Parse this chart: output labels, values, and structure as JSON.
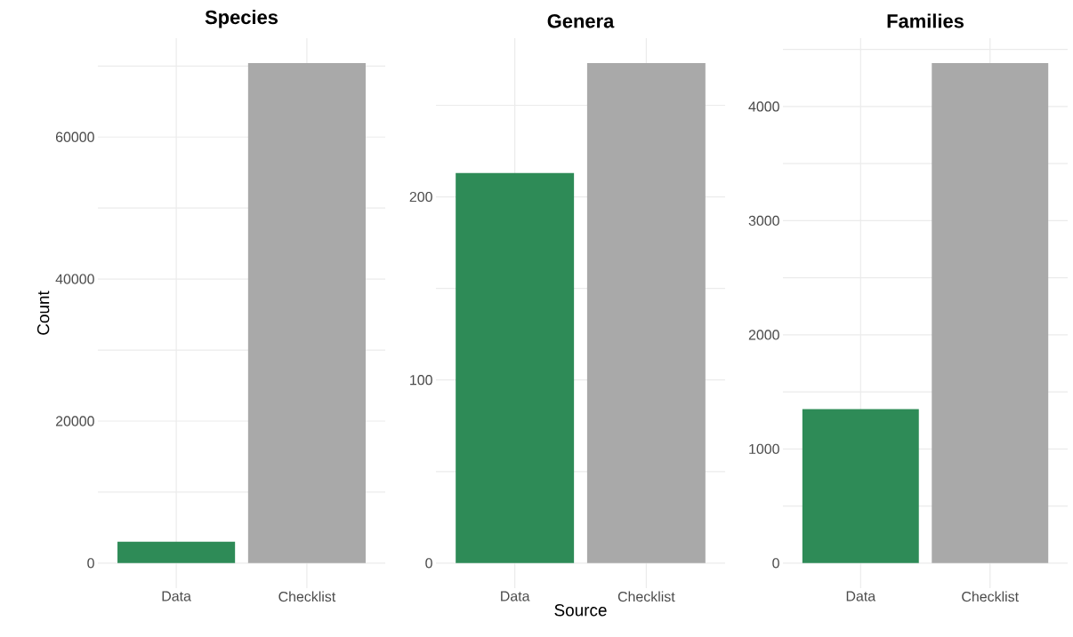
{
  "chart_data": [
    {
      "type": "bar",
      "title": "Species",
      "ylabel": "Count",
      "categories": [
        "Data",
        "Checklist"
      ],
      "values": [
        3000,
        70400
      ],
      "colors": [
        "#2e8b57",
        "#a9a9a9"
      ],
      "ylim": [
        -3520,
        73920
      ],
      "yticks": [
        0,
        {
          "value": 10000,
          "label": null
        },
        20000,
        {
          "value": 30000,
          "label": null
        },
        40000,
        {
          "value": 50000,
          "label": null
        },
        60000,
        {
          "value": 70000,
          "label": null
        }
      ],
      "grid": true
    },
    {
      "type": "bar",
      "title": "Genera",
      "xlabel": "Source",
      "categories": [
        "Data",
        "Checklist"
      ],
      "values": [
        213,
        273
      ],
      "colors": [
        "#2e8b57",
        "#a9a9a9"
      ],
      "ylim": [
        -13.65,
        286.65
      ],
      "yticks": [
        0,
        {
          "value": 50,
          "label": null
        },
        100,
        {
          "value": 150,
          "label": null
        },
        200,
        {
          "value": 250,
          "label": null
        }
      ],
      "grid": true
    },
    {
      "type": "bar",
      "title": "Families",
      "categories": [
        "Data",
        "Checklist"
      ],
      "values": [
        1350,
        4380
      ],
      "colors": [
        "#2e8b57",
        "#a9a9a9"
      ],
      "ylim": [
        -219,
        4599
      ],
      "yticks": [
        0,
        {
          "value": 500,
          "label": null
        },
        1000,
        {
          "value": 1500,
          "label": null
        },
        2000,
        {
          "value": 2500,
          "label": null
        },
        3000,
        {
          "value": 3500,
          "label": null
        },
        4000,
        {
          "value": 4500,
          "label": null
        }
      ],
      "grid": true
    }
  ]
}
